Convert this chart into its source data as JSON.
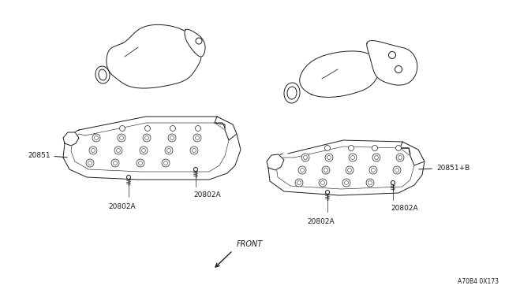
{
  "background_color": "#FFFFFF",
  "line_color": "#1a1a1a",
  "fig_width": 6.4,
  "fig_height": 3.72,
  "dpi": 100,
  "labels": {
    "left_shield": "20851",
    "right_shield": "20851+B",
    "bolt": "20802A",
    "front_arrow": "FRONT",
    "part_num": "A70B4 0X173"
  },
  "font_size": 6.5,
  "line_width": 0.7
}
